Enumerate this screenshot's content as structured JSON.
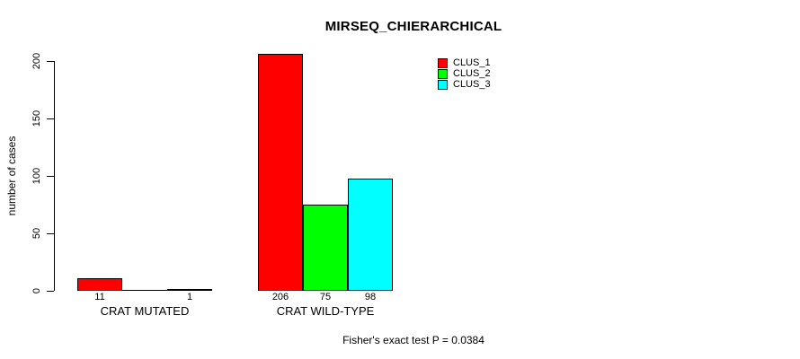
{
  "chart_data": {
    "type": "bar",
    "title": "MIRSEQ_CHIERARCHICAL",
    "ylabel": "number of cases",
    "xlabel": "",
    "footnote": "Fisher's exact test P = 0.0384",
    "groups": [
      "CRAT MUTATED",
      "CRAT WILD-TYPE"
    ],
    "series": [
      {
        "name": "CLUS_1",
        "color": "#FF0000",
        "values": [
          11,
          206
        ]
      },
      {
        "name": "CLUS_2",
        "color": "#00FF00",
        "values": [
          0,
          75
        ]
      },
      {
        "name": "CLUS_3",
        "color": "#00FFFF",
        "values": [
          1,
          98
        ]
      }
    ],
    "value_labels": [
      [
        "11",
        "",
        "1"
      ],
      [
        "206",
        "75",
        "98"
      ]
    ],
    "yticks": [
      "0",
      "50",
      "100",
      "150",
      "200"
    ],
    "ylim": [
      0,
      206
    ],
    "grid": false,
    "legend_position": "top-right-inside",
    "axis_color": "#000000",
    "background": "#FFFFFF"
  }
}
